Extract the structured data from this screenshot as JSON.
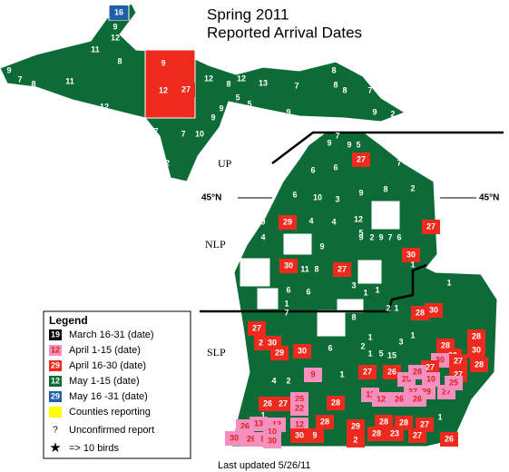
{
  "map": {
    "title": [
      "Spring 2011",
      "Reported Arrival Dates"
    ],
    "regions": [
      "UP",
      "NLP",
      "SLP"
    ],
    "latitude_labels": [
      "45°N",
      "45°N"
    ],
    "legend": {
      "title": "Legend",
      "items": [
        {
          "swatch": "19",
          "label": "March 16-31 (date)",
          "color": "#000000"
        },
        {
          "swatch": "12",
          "label": "April 1-15 (date)",
          "color": "#f48fc0"
        },
        {
          "swatch": "29",
          "label": "April 16-30 (date)",
          "color": "#ee2a1e"
        },
        {
          "swatch": "12",
          "label": "May 1-15 (date)",
          "color": "#0c6b36"
        },
        {
          "swatch": "29",
          "label": "May 16 -31 (date)",
          "color": "#1f5fa8"
        },
        {
          "label": "Counties reporting",
          "color": "#ffff00"
        },
        {
          "symbol": "?",
          "label": "Unconfirmed report"
        },
        {
          "symbol": "★",
          "label": "=> 10 birds"
        }
      ]
    },
    "counties": [
      {
        "date": "16",
        "category": 4
      },
      {
        "date": "9",
        "category": 3
      },
      {
        "date": "9",
        "category": 3
      },
      {
        "date": "12",
        "category": 3
      },
      {
        "date": "11",
        "category": 3
      },
      {
        "date": "8",
        "category": 3
      },
      {
        "date": "9",
        "category": 3
      },
      {
        "date": "7",
        "category": 3
      },
      {
        "date": "8",
        "category": 3
      },
      {
        "date": "11",
        "category": 3
      },
      {
        "date": "12",
        "category": 3
      },
      {
        "date": "12",
        "category": 3
      },
      {
        "date": "9",
        "category": 2
      },
      {
        "date": "12",
        "category": 2
      },
      {
        "date": "27",
        "category": 2
      },
      {
        "date": "12",
        "category": 3
      },
      {
        "date": "8",
        "category": 3
      },
      {
        "date": "12",
        "category": 3
      },
      {
        "date": "13",
        "category": 3
      },
      {
        "date": "7",
        "category": 3
      },
      {
        "date": "8",
        "category": 3
      },
      {
        "date": "8",
        "category": 3
      },
      {
        "date": "8",
        "category": 3
      },
      {
        "date": "7",
        "category": 3
      },
      {
        "date": "5",
        "category": 3
      },
      {
        "date": "5",
        "category": 3
      },
      {
        "date": "7",
        "category": 3
      },
      {
        "date": "9",
        "category": 3
      },
      {
        "date": "9",
        "category": 3
      },
      {
        "date": "10",
        "category": 3
      },
      {
        "date": "7",
        "category": 3
      },
      {
        "date": "7",
        "category": 3
      },
      {
        "date": "12",
        "category": 3
      },
      {
        "date": "9",
        "category": 3
      },
      {
        "date": "2",
        "category": 3
      },
      {
        "date": "9",
        "category": 3
      },
      {
        "date": "9",
        "category": 3
      },
      {
        "date": "7",
        "category": 3
      },
      {
        "date": "9",
        "category": 3
      },
      {
        "date": "5",
        "category": 3
      },
      {
        "date": "27",
        "category": 2
      },
      {
        "date": "6",
        "category": 3
      },
      {
        "date": "6",
        "category": 3
      },
      {
        "date": "7",
        "category": 3
      },
      {
        "date": "1",
        "category": 3
      },
      {
        "date": "6",
        "category": 3
      },
      {
        "date": "10",
        "category": 3
      },
      {
        "date": "3",
        "category": 3
      },
      {
        "date": "9",
        "category": 3
      },
      {
        "date": "8",
        "category": 3
      },
      {
        "date": "2",
        "category": 3
      },
      {
        "date": "9",
        "category": 3
      },
      {
        "date": "29",
        "category": 2
      },
      {
        "date": "4",
        "category": 3
      },
      {
        "date": "4",
        "category": 3
      },
      {
        "date": "12",
        "category": 3
      },
      {
        "date": "5",
        "category": 3
      },
      {
        "date": "27",
        "category": 2
      },
      {
        "date": "9",
        "category": 3
      },
      {
        "date": "4",
        "category": 3
      },
      {
        "date": "9",
        "category": 3
      },
      {
        "date": "9",
        "category": 3
      },
      {
        "date": "2",
        "category": 3
      },
      {
        "date": "9",
        "category": 3
      },
      {
        "date": "7",
        "category": 3
      },
      {
        "date": "6",
        "category": 3
      },
      {
        "date": "30",
        "category": 2
      },
      {
        "date": "30",
        "category": 2
      },
      {
        "date": "11",
        "category": 3
      },
      {
        "date": "8",
        "category": 3
      },
      {
        "date": "27",
        "category": 2
      },
      {
        "date": "1",
        "category": 3
      },
      {
        "date": "6",
        "category": 3
      },
      {
        "date": "6",
        "category": 3
      },
      {
        "date": "3",
        "category": 3
      },
      {
        "date": "1",
        "category": 3
      },
      {
        "date": "1",
        "category": 3
      },
      {
        "date": "1",
        "category": 3
      },
      {
        "date": "7",
        "category": 3
      },
      {
        "date": "8",
        "category": 3
      },
      {
        "date": "2",
        "category": 3
      },
      {
        "date": "1",
        "category": 3
      },
      {
        "date": "28",
        "category": 2
      },
      {
        "date": "30",
        "category": 2
      },
      {
        "date": "1",
        "category": 3
      },
      {
        "date": "27",
        "category": 2
      },
      {
        "date": "29",
        "category": 2
      },
      {
        "date": "30",
        "category": 2
      },
      {
        "date": "29",
        "category": 2
      },
      {
        "date": "30",
        "category": 2
      },
      {
        "date": "6",
        "category": 3
      },
      {
        "date": "2",
        "category": 3
      },
      {
        "date": "1",
        "category": 3
      },
      {
        "date": "3",
        "category": 3
      },
      {
        "date": "1",
        "category": 3
      },
      {
        "date": "28",
        "category": 2
      },
      {
        "date": "30",
        "category": 2
      },
      {
        "date": "28",
        "category": 2
      },
      {
        "date": "30",
        "category": 2
      },
      {
        "date": "28",
        "category": 2
      },
      {
        "date": "1",
        "category": 3
      },
      {
        "date": "5",
        "category": 3
      },
      {
        "date": "15",
        "category": 3
      },
      {
        "date": "4",
        "category": 3
      },
      {
        "date": "2",
        "category": 3
      },
      {
        "date": "9",
        "category": 1
      },
      {
        "date": "1",
        "category": 3
      },
      {
        "date": "27",
        "category": 2
      },
      {
        "date": "26",
        "category": 2
      },
      {
        "date": "30",
        "category": 1
      },
      {
        "date": "27",
        "category": 2
      },
      {
        "date": "27",
        "category": 2
      },
      {
        "date": "27",
        "category": 2
      },
      {
        "date": "25",
        "category": 1
      },
      {
        "date": "28",
        "category": 1
      },
      {
        "date": "10",
        "category": 1
      },
      {
        "date": "27",
        "category": 1
      },
      {
        "date": "29",
        "category": 1
      },
      {
        "date": "27",
        "category": 1
      },
      {
        "date": "25",
        "category": 1
      },
      {
        "date": "26",
        "category": 2
      },
      {
        "date": "27",
        "category": 2
      },
      {
        "date": "25",
        "category": 1
      },
      {
        "date": "22",
        "category": 1
      },
      {
        "date": "28",
        "category": 2
      },
      {
        "date": "11",
        "category": 1
      },
      {
        "date": "12",
        "category": 1
      },
      {
        "date": "26",
        "category": 1
      },
      {
        "date": "26",
        "category": 1
      },
      {
        "date": "1",
        "category": 3
      },
      {
        "date": "1",
        "category": 3
      },
      {
        "date": "26",
        "category": 1
      },
      {
        "date": "13",
        "category": 1
      },
      {
        "date": "27",
        "category": 1
      },
      {
        "date": "12",
        "category": 1
      },
      {
        "date": "12",
        "category": 1
      },
      {
        "date": "28",
        "category": 2
      },
      {
        "date": "29",
        "category": 2
      },
      {
        "date": "28",
        "category": 2
      },
      {
        "date": "28",
        "category": 2
      },
      {
        "date": "27",
        "category": 2
      },
      {
        "date": "28",
        "category": 2
      },
      {
        "date": "23",
        "category": 2
      },
      {
        "date": "27",
        "category": 2
      },
      {
        "date": "30",
        "category": 1
      },
      {
        "date": "26",
        "category": 1
      },
      {
        "date": "8",
        "category": 1
      },
      {
        "date": "10",
        "category": 1
      },
      {
        "date": "30",
        "category": 1
      },
      {
        "date": "30",
        "category": 2
      },
      {
        "date": "9",
        "category": 2
      },
      {
        "date": "2",
        "category": 2
      },
      {
        "date": "26",
        "category": 2
      }
    ],
    "footer": "Last updated 5/26/11"
  }
}
